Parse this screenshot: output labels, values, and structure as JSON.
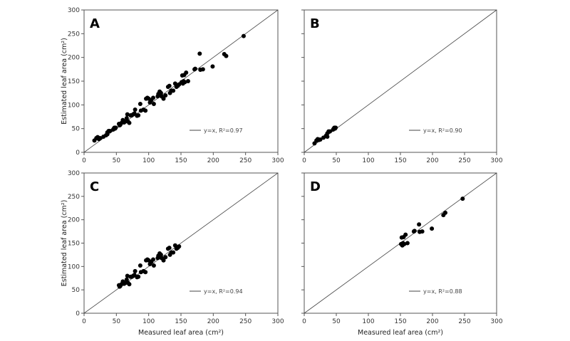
{
  "chart_data": [
    {
      "type": "scatter",
      "panel_label": "A",
      "ylabel": "Estimated leaf area (cm²)",
      "xlabel": "",
      "xlim": [
        0,
        300
      ],
      "ylim": [
        0,
        300
      ],
      "xticks": [
        "0",
        "50",
        "100",
        "150",
        "200",
        "250",
        "300"
      ],
      "yticks": [
        "0",
        "50",
        "100",
        "150",
        "200",
        "250",
        "300"
      ],
      "show_x_ticklabels": true,
      "show_y_ticklabels": true,
      "reference_line": "y=x",
      "legend": "y=x, R²=0.97",
      "points": [
        [
          16,
          25
        ],
        [
          19,
          30
        ],
        [
          21,
          32
        ],
        [
          23,
          28
        ],
        [
          25,
          30
        ],
        [
          30,
          33
        ],
        [
          34,
          36
        ],
        [
          36,
          42
        ],
        [
          38,
          45
        ],
        [
          40,
          45
        ],
        [
          36,
          38
        ],
        [
          46,
          50
        ],
        [
          47,
          52
        ],
        [
          48,
          50
        ],
        [
          49,
          52
        ],
        [
          45,
          48
        ],
        [
          54,
          60
        ],
        [
          55,
          57
        ],
        [
          56,
          58
        ],
        [
          58,
          62
        ],
        [
          60,
          68
        ],
        [
          62,
          63
        ],
        [
          64,
          65
        ],
        [
          66,
          72
        ],
        [
          67,
          80
        ],
        [
          68,
          65
        ],
        [
          70,
          62
        ],
        [
          72,
          78
        ],
        [
          74,
          78
        ],
        [
          76,
          80
        ],
        [
          78,
          82
        ],
        [
          79,
          90
        ],
        [
          82,
          77
        ],
        [
          84,
          78
        ],
        [
          87,
          102
        ],
        [
          88,
          88
        ],
        [
          92,
          90
        ],
        [
          95,
          88
        ],
        [
          96,
          113
        ],
        [
          98,
          115
        ],
        [
          100,
          113
        ],
        [
          102,
          105
        ],
        [
          104,
          110
        ],
        [
          107,
          115
        ],
        [
          108,
          102
        ],
        [
          114,
          118
        ],
        [
          115,
          123
        ],
        [
          117,
          128
        ],
        [
          119,
          125
        ],
        [
          120,
          118
        ],
        [
          123,
          113
        ],
        [
          126,
          120
        ],
        [
          130,
          138
        ],
        [
          132,
          140
        ],
        [
          133,
          125
        ],
        [
          135,
          130
        ],
        [
          138,
          130
        ],
        [
          141,
          145
        ],
        [
          143,
          138
        ],
        [
          145,
          140
        ],
        [
          147,
          143
        ],
        [
          151,
          148
        ],
        [
          152,
          162
        ],
        [
          153,
          145
        ],
        [
          154,
          150
        ],
        [
          155,
          163
        ],
        [
          156,
          148
        ],
        [
          158,
          168
        ],
        [
          161,
          150
        ],
        [
          171,
          175
        ],
        [
          172,
          176
        ],
        [
          179,
          208
        ],
        [
          180,
          174
        ],
        [
          184,
          175
        ],
        [
          199,
          181
        ],
        [
          217,
          207
        ],
        [
          220,
          203
        ],
        [
          247,
          245
        ]
      ]
    },
    {
      "type": "scatter",
      "panel_label": "B",
      "ylabel": "",
      "xlabel": "",
      "xlim": [
        0,
        300
      ],
      "ylim": [
        0,
        300
      ],
      "xticks": [
        "0",
        "50",
        "100",
        "150",
        "200",
        "250",
        "300"
      ],
      "yticks": [
        "0",
        "50",
        "100",
        "150",
        "200",
        "250",
        "300"
      ],
      "show_x_ticklabels": true,
      "show_y_ticklabels": false,
      "reference_line": "y=x",
      "legend": "y=x, R²=0.90",
      "points": [
        [
          16,
          19
        ],
        [
          19,
          25
        ],
        [
          21,
          28
        ],
        [
          23,
          26
        ],
        [
          25,
          27
        ],
        [
          30,
          31
        ],
        [
          34,
          35
        ],
        [
          36,
          40
        ],
        [
          38,
          44
        ],
        [
          40,
          44
        ],
        [
          36,
          33
        ],
        [
          46,
          50
        ],
        [
          47,
          52
        ],
        [
          48,
          50
        ],
        [
          49,
          52
        ],
        [
          45,
          48
        ]
      ]
    },
    {
      "type": "scatter",
      "panel_label": "C",
      "ylabel": "Estimated leaf area (cm²)",
      "xlabel": "Measured leaf area (cm²)",
      "xlim": [
        0,
        300
      ],
      "ylim": [
        0,
        300
      ],
      "xticks": [
        "0",
        "50",
        "100",
        "150",
        "200",
        "250",
        "300"
      ],
      "yticks": [
        "0",
        "50",
        "100",
        "150",
        "200",
        "250",
        "300"
      ],
      "show_x_ticklabels": true,
      "show_y_ticklabels": true,
      "reference_line": "y=x",
      "legend": "y=x, R²=0.94",
      "points": [
        [
          54,
          60
        ],
        [
          55,
          57
        ],
        [
          56,
          58
        ],
        [
          58,
          62
        ],
        [
          60,
          68
        ],
        [
          62,
          63
        ],
        [
          64,
          65
        ],
        [
          66,
          72
        ],
        [
          67,
          80
        ],
        [
          68,
          65
        ],
        [
          70,
          62
        ],
        [
          72,
          78
        ],
        [
          74,
          78
        ],
        [
          76,
          80
        ],
        [
          78,
          82
        ],
        [
          79,
          90
        ],
        [
          82,
          77
        ],
        [
          84,
          78
        ],
        [
          87,
          102
        ],
        [
          88,
          88
        ],
        [
          92,
          90
        ],
        [
          95,
          88
        ],
        [
          96,
          113
        ],
        [
          98,
          115
        ],
        [
          100,
          113
        ],
        [
          102,
          105
        ],
        [
          104,
          110
        ],
        [
          107,
          115
        ],
        [
          108,
          102
        ],
        [
          114,
          118
        ],
        [
          115,
          123
        ],
        [
          117,
          128
        ],
        [
          119,
          125
        ],
        [
          120,
          118
        ],
        [
          123,
          113
        ],
        [
          126,
          120
        ],
        [
          130,
          138
        ],
        [
          132,
          140
        ],
        [
          133,
          125
        ],
        [
          135,
          130
        ],
        [
          138,
          130
        ],
        [
          141,
          145
        ],
        [
          143,
          138
        ],
        [
          145,
          140
        ],
        [
          147,
          143
        ]
      ]
    },
    {
      "type": "scatter",
      "panel_label": "D",
      "ylabel": "",
      "xlabel": "Measured leaf area (cm²)",
      "xlim": [
        0,
        300
      ],
      "ylim": [
        0,
        300
      ],
      "xticks": [
        "0",
        "50",
        "100",
        "150",
        "200",
        "250",
        "300"
      ],
      "yticks": [
        "0",
        "50",
        "100",
        "150",
        "200",
        "250",
        "300"
      ],
      "show_x_ticklabels": true,
      "show_y_ticklabels": false,
      "reference_line": "y=x",
      "legend": "y=x, R²=0.88",
      "points": [
        [
          151,
          148
        ],
        [
          152,
          162
        ],
        [
          153,
          145
        ],
        [
          154,
          150
        ],
        [
          155,
          163
        ],
        [
          156,
          148
        ],
        [
          158,
          168
        ],
        [
          161,
          150
        ],
        [
          171,
          175
        ],
        [
          172,
          176
        ],
        [
          179,
          190
        ],
        [
          180,
          174
        ],
        [
          184,
          175
        ],
        [
          199,
          181
        ],
        [
          217,
          210
        ],
        [
          220,
          215
        ],
        [
          247,
          245
        ]
      ]
    }
  ]
}
